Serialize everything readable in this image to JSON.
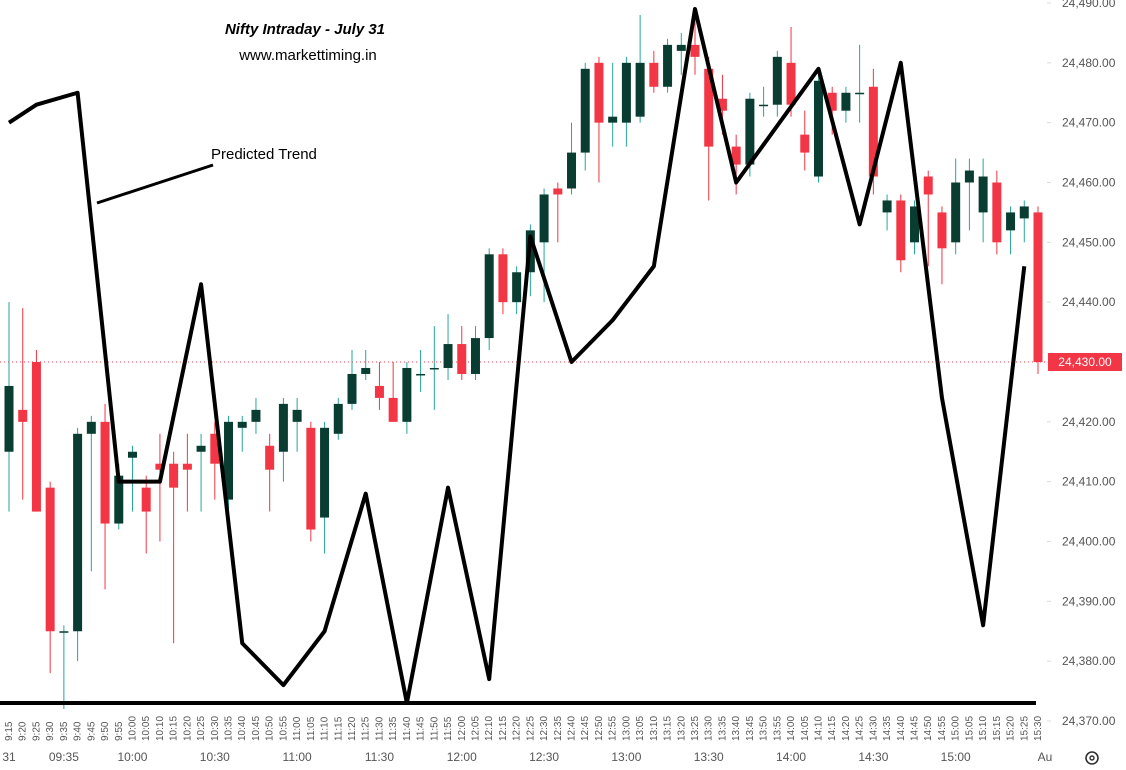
{
  "chart_data": {
    "type": "candlestick",
    "title": "Nifty Intraday - July 31",
    "subtitle": "www.markettiming.in",
    "categories": [
      "9:15",
      "9:20",
      "9:25",
      "9:30",
      "9:35",
      "9:40",
      "9:45",
      "9:50",
      "9:55",
      "10:00",
      "10:05",
      "10:10",
      "10:15",
      "10:20",
      "10:25",
      "10:30",
      "10:35",
      "10:40",
      "10:45",
      "10:50",
      "10:55",
      "11:00",
      "11:05",
      "11:10",
      "11:15",
      "11:20",
      "11:25",
      "11:30",
      "11:35",
      "11:40",
      "11:45",
      "11:50",
      "11:55",
      "12:00",
      "12:05",
      "12:10",
      "12:15",
      "12:20",
      "12:25",
      "12:30",
      "12:35",
      "12:40",
      "12:45",
      "12:50",
      "12:55",
      "13:00",
      "13:05",
      "13:10",
      "13:15",
      "13:20",
      "13:25",
      "13:30",
      "13:35",
      "13:40",
      "13:45",
      "13:50",
      "13:55",
      "14:00",
      "14:05",
      "14:10",
      "14:15",
      "14:20",
      "14:25",
      "14:30",
      "14:35",
      "14:40",
      "14:45",
      "14:50",
      "14:55",
      "15:00",
      "15:05",
      "15:10",
      "15:15",
      "15:20",
      "15:25",
      "15:30"
    ],
    "open": [
      24415,
      24422,
      24430,
      24409,
      24385,
      24385,
      24418,
      24420,
      24403,
      24414,
      24409,
      24413,
      24413,
      24413,
      24415,
      24418,
      24407,
      24419,
      24420,
      24416,
      24415,
      24420,
      24419,
      24404,
      24418,
      24423,
      24428,
      24426,
      24424,
      24420,
      24428,
      24429,
      24429,
      24433,
      24428,
      24434,
      24448,
      24440,
      24445,
      24450,
      24459,
      24459,
      24465,
      24480,
      24470,
      24470,
      24471,
      24480,
      24476,
      24482,
      24483,
      24479,
      24474,
      24466,
      24463,
      24473,
      24473,
      24480,
      24468,
      24461,
      24475,
      24472,
      24475,
      24476,
      24455,
      24457,
      24450,
      24461,
      24455,
      24450,
      24460,
      24455,
      24460,
      24452,
      24454,
      24455
    ],
    "high": [
      24440,
      24439,
      24432,
      24410,
      24386,
      24419,
      24421,
      24423,
      24413,
      24416,
      24411,
      24418,
      24415,
      24418,
      24418,
      24420,
      24421,
      24421,
      24424,
      24418,
      24424,
      24424,
      24420,
      24420,
      24424,
      24432,
      24432,
      24430,
      24430,
      24430,
      24432,
      24436,
      24438,
      24436,
      24436,
      24449,
      24449,
      24446,
      24453,
      24459,
      24460,
      24470,
      24480,
      24481,
      24480,
      24481,
      24488,
      24482,
      24484,
      24485,
      24489,
      24481,
      24478,
      24468,
      24475,
      24476,
      24482,
      24486,
      24472,
      24478,
      24476,
      24476,
      24483,
      24479,
      24458,
      24458,
      24457,
      24462,
      24456,
      24464,
      24464,
      24464,
      24462,
      24456,
      24457,
      24456
    ],
    "low": [
      24405,
      24407,
      24405,
      24378,
      24372,
      24380,
      24395,
      24392,
      24402,
      24405,
      24398,
      24400,
      24383,
      24405,
      24405,
      24407,
      24404,
      24415,
      24418,
      24405,
      24410,
      24415,
      24400,
      24398,
      24417,
      24422,
      24427,
      24422,
      24420,
      24418,
      24425,
      24422,
      24427,
      24427,
      24427,
      24432,
      24438,
      24438,
      24441,
      24440,
      24450,
      24458,
      24462,
      24460,
      24466,
      24466,
      24470,
      24475,
      24475,
      24478,
      24478,
      24457,
      24468,
      24458,
      24461,
      24471,
      24471,
      24471,
      24462,
      24460,
      24468,
      24470,
      24470,
      24458,
      24452,
      24445,
      24448,
      24446,
      24443,
      24448,
      24452,
      24450,
      24448,
      24448,
      24450,
      24428
    ],
    "close": [
      24426,
      24420,
      24405,
      24385,
      24385,
      24418,
      24420,
      24403,
      24411,
      24415,
      24405,
      24412,
      24409,
      24412,
      24416,
      24413,
      24420,
      24420,
      24422,
      24412,
      24423,
      24422,
      24402,
      24419,
      24423,
      24428,
      24429,
      24424,
      24420,
      24429,
      24428,
      24429,
      24433,
      24428,
      24434,
      24448,
      24440,
      24445,
      24452,
      24458,
      24458,
      24465,
      24479,
      24470,
      24471,
      24480,
      24480,
      24476,
      24483,
      24483,
      24481,
      24466,
      24472,
      24463,
      24474,
      24473,
      24481,
      24473,
      24465,
      24477,
      24472,
      24475,
      24475,
      24461,
      24457,
      24447,
      24456,
      24458,
      24449,
      24460,
      24462,
      24461,
      24450,
      24455,
      24456,
      24430
    ],
    "up_color": "#0a3d31",
    "up_wick_color": "#26a69a",
    "down_color": "#f23645",
    "ylim": [
      24370,
      24490
    ],
    "yticks": [
      {
        "value": 24370,
        "label": "24,370.00"
      },
      {
        "value": 24380,
        "label": "24,380.00"
      },
      {
        "value": 24390,
        "label": "24,390.00"
      },
      {
        "value": 24400,
        "label": "24,400.00"
      },
      {
        "value": 24410,
        "label": "24,410.00"
      },
      {
        "value": 24420,
        "label": "24,420.00"
      },
      {
        "value": 24430,
        "label": "24,430.00"
      },
      {
        "value": 24440,
        "label": "24,440.00"
      },
      {
        "value": 24450,
        "label": "24,450.00"
      },
      {
        "value": 24460,
        "label": "24,460.00"
      },
      {
        "value": 24470,
        "label": "24,470.00"
      },
      {
        "value": 24480,
        "label": "24,480.00"
      },
      {
        "value": 24490,
        "label": "24,490.00"
      }
    ],
    "major_xticks": [
      {
        "value": "9:15",
        "label": "31"
      },
      {
        "value": "9:35",
        "label": "09:35"
      },
      {
        "value": "10:00",
        "label": "10:00"
      },
      {
        "value": "10:30",
        "label": "10:30"
      },
      {
        "value": "11:00",
        "label": "11:00"
      },
      {
        "value": "11:30",
        "label": "11:30"
      },
      {
        "value": "12:00",
        "label": "12:00"
      },
      {
        "value": "12:30",
        "label": "12:30"
      },
      {
        "value": "13:00",
        "label": "13:00"
      },
      {
        "value": "13:30",
        "label": "13:30"
      },
      {
        "value": "14:00",
        "label": "14:00"
      },
      {
        "value": "14:30",
        "label": "14:30"
      },
      {
        "value": "15:00",
        "label": "15:00"
      },
      {
        "value": "15:30",
        "label": "Au"
      }
    ],
    "last_price": {
      "value": 24430,
      "label": "24,430.00",
      "color": "#f23645"
    },
    "trend": {
      "name": "Predicted Trend",
      "color": "#000000",
      "x": [
        "9:15",
        "9:25",
        "9:40",
        "9:55",
        "10:10",
        "10:25",
        "10:40",
        "10:55",
        "11:10",
        "11:25",
        "11:40",
        "11:55",
        "12:10",
        "12:25",
        "12:40",
        "12:55",
        "13:10",
        "13:25",
        "13:40",
        "14:10",
        "14:25",
        "14:40",
        "14:55",
        "15:10",
        "15:25"
      ],
      "values": [
        24470,
        24473,
        24475,
        24410,
        24410,
        24443,
        24383,
        24376,
        24385,
        24408,
        24373,
        24409,
        24377,
        24451,
        24430,
        24437,
        24446,
        24489,
        24460,
        24479,
        24453,
        24480,
        24424,
        24386,
        24446
      ]
    }
  }
}
